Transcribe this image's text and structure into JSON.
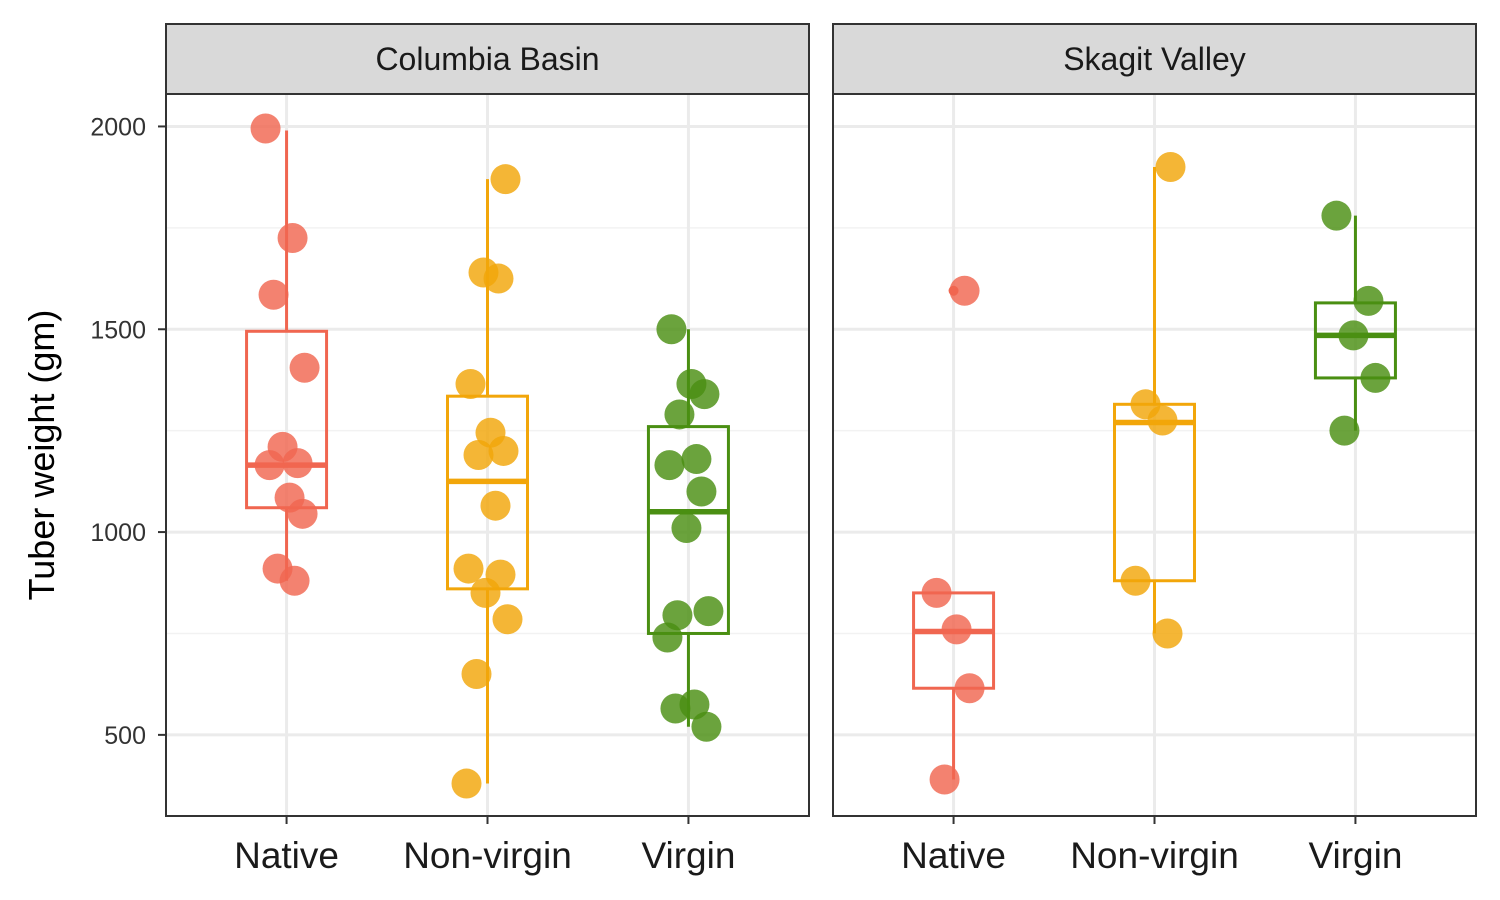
{
  "chart_data": {
    "type": "box",
    "title": "",
    "xlabel": "",
    "ylabel": "Tuber weight (gm)",
    "ylim": [
      300,
      2080
    ],
    "yticks": [
      "500",
      "1000",
      "1500",
      "2000"
    ],
    "grid": true,
    "legend": "none",
    "colors": {
      "Native": "#f06650",
      "Non-virgin": "#f2a60a",
      "Virgin": "#4a8f12"
    },
    "categories": [
      "Native",
      "Non-virgin",
      "Virgin"
    ],
    "facets": [
      {
        "label": "Columbia Basin",
        "groups": [
          {
            "name": "Native",
            "box": {
              "min": 880,
              "q1": 1060,
              "median": 1165,
              "q3": 1495,
              "max": 1990,
              "outliers": []
            },
            "points": [
              1995,
              1725,
              1585,
              1405,
              1210,
              1170,
              1165,
              1085,
              1045,
              910,
              880
            ]
          },
          {
            "name": "Non-virgin",
            "box": {
              "min": 380,
              "q1": 860,
              "median": 1125,
              "q3": 1335,
              "max": 1870,
              "outliers": []
            },
            "points": [
              1870,
              1640,
              1625,
              1365,
              1245,
              1200,
              1190,
              1065,
              910,
              895,
              850,
              785,
              650,
              380
            ]
          },
          {
            "name": "Virgin",
            "box": {
              "min": 520,
              "q1": 750,
              "median": 1050,
              "q3": 1260,
              "max": 1500,
              "outliers": []
            },
            "points": [
              1500,
              1365,
              1340,
              1290,
              1180,
              1165,
              1100,
              1010,
              805,
              795,
              740,
              575,
              565,
              520
            ]
          }
        ]
      },
      {
        "label": "Skagit Valley",
        "groups": [
          {
            "name": "Native",
            "box": {
              "min": 390,
              "q1": 615,
              "median": 755,
              "q3": 850,
              "max": 850,
              "outliers": [
                1595
              ]
            },
            "points": [
              1595,
              850,
              760,
              615,
              390
            ]
          },
          {
            "name": "Non-virgin",
            "box": {
              "min": 750,
              "q1": 880,
              "median": 1270,
              "q3": 1315,
              "max": 1900,
              "outliers": []
            },
            "points": [
              1900,
              1315,
              1275,
              880,
              750
            ]
          },
          {
            "name": "Virgin",
            "box": {
              "min": 1250,
              "q1": 1380,
              "median": 1485,
              "q3": 1565,
              "max": 1780,
              "outliers": []
            },
            "points": [
              1780,
              1570,
              1485,
              1380,
              1250
            ]
          }
        ]
      }
    ]
  }
}
